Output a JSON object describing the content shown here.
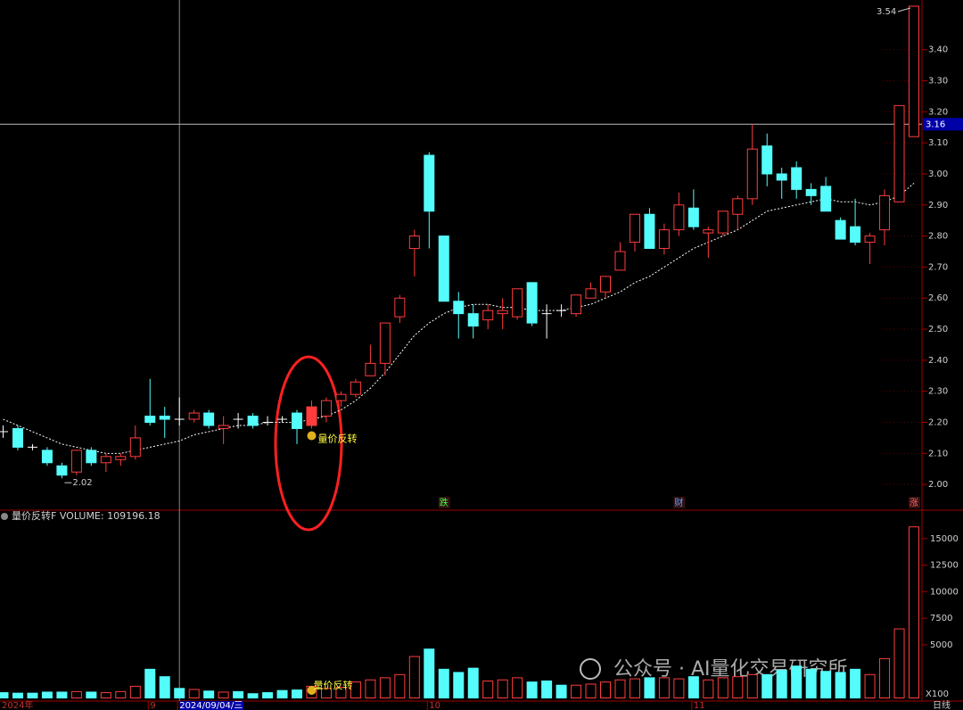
{
  "chart_data": {
    "type": "candlestick",
    "categories": [
      "2024年",
      null,
      null,
      null,
      null,
      null,
      null,
      null,
      null,
      null,
      "9",
      null,
      "2024/09/04/三",
      null,
      null,
      null,
      null,
      null,
      null,
      null,
      null,
      null,
      null,
      null,
      null,
      null,
      null,
      null,
      null,
      "10",
      null,
      null,
      null,
      null,
      null,
      null,
      null,
      null,
      null,
      null,
      null,
      null,
      null,
      null,
      null,
      null,
      null,
      "11",
      null,
      null,
      null,
      null,
      null,
      null,
      null,
      null,
      null,
      null,
      null,
      null,
      null,
      null,
      null
    ],
    "open": [
      2.17,
      2.18,
      2.12,
      2.11,
      2.06,
      2.04,
      2.11,
      2.07,
      2.08,
      2.09,
      2.22,
      2.22,
      2.21,
      2.21,
      2.23,
      2.18,
      2.21,
      2.22,
      2.2,
      2.21,
      2.23,
      2.19,
      2.22,
      2.27,
      2.29,
      2.35,
      2.39,
      2.54,
      2.76,
      3.06,
      2.8,
      2.59,
      2.55,
      2.53,
      2.55,
      2.54,
      2.65,
      2.55,
      2.56,
      2.55,
      2.6,
      2.62,
      2.69,
      2.78,
      2.87,
      2.76,
      2.82,
      2.89,
      2.81,
      2.81,
      2.87,
      2.92,
      3.09,
      3.0,
      3.02,
      2.95,
      2.96,
      2.85,
      2.83,
      2.78,
      2.82,
      2.91,
      3.12
    ],
    "high": [
      2.19,
      2.19,
      2.13,
      2.12,
      2.07,
      2.11,
      2.12,
      2.1,
      2.1,
      2.19,
      2.34,
      2.25,
      2.28,
      2.24,
      2.24,
      2.22,
      2.23,
      2.23,
      2.22,
      2.22,
      2.24,
      2.27,
      2.28,
      2.3,
      2.34,
      2.45,
      2.52,
      2.61,
      2.82,
      3.07,
      2.8,
      2.62,
      2.58,
      2.58,
      2.6,
      2.63,
      2.65,
      2.58,
      2.58,
      2.61,
      2.65,
      2.67,
      2.78,
      2.87,
      2.89,
      2.84,
      2.94,
      2.95,
      2.83,
      2.88,
      2.93,
      3.16,
      3.13,
      3.02,
      3.04,
      2.97,
      2.99,
      2.86,
      2.92,
      2.81,
      2.95,
      3.22,
      3.54
    ],
    "low": [
      2.15,
      2.11,
      2.11,
      2.06,
      2.02,
      2.03,
      2.06,
      2.04,
      2.06,
      2.08,
      2.19,
      2.15,
      2.19,
      2.2,
      2.18,
      2.13,
      2.18,
      2.18,
      2.19,
      2.2,
      2.13,
      2.18,
      2.2,
      2.25,
      2.28,
      2.35,
      2.35,
      2.52,
      2.67,
      2.76,
      2.59,
      2.47,
      2.47,
      2.5,
      2.5,
      2.53,
      2.51,
      2.47,
      2.54,
      2.54,
      2.6,
      2.6,
      2.69,
      2.75,
      2.76,
      2.74,
      2.8,
      2.82,
      2.73,
      2.8,
      2.82,
      2.9,
      2.96,
      2.92,
      2.92,
      2.9,
      2.88,
      2.79,
      2.77,
      2.71,
      2.77,
      2.91,
      3.12
    ],
    "close": [
      2.17,
      2.12,
      2.12,
      2.07,
      2.03,
      2.11,
      2.07,
      2.09,
      2.09,
      2.15,
      2.2,
      2.21,
      2.21,
      2.23,
      2.19,
      2.19,
      2.21,
      2.19,
      2.2,
      2.21,
      2.18,
      2.25,
      2.27,
      2.29,
      2.33,
      2.39,
      2.52,
      2.6,
      2.8,
      2.88,
      2.59,
      2.55,
      2.51,
      2.56,
      2.56,
      2.63,
      2.52,
      2.55,
      2.56,
      2.61,
      2.63,
      2.67,
      2.75,
      2.87,
      2.76,
      2.82,
      2.9,
      2.83,
      2.82,
      2.88,
      2.92,
      3.08,
      3.0,
      2.98,
      2.95,
      2.93,
      2.88,
      2.79,
      2.78,
      2.8,
      2.93,
      3.22,
      3.54
    ],
    "ma": [
      2.21,
      2.19,
      2.17,
      2.15,
      2.13,
      2.12,
      2.11,
      2.1,
      2.1,
      2.11,
      2.12,
      2.13,
      2.14,
      2.16,
      2.17,
      2.18,
      2.19,
      2.19,
      2.2,
      2.2,
      2.2,
      2.21,
      2.22,
      2.24,
      2.27,
      2.31,
      2.36,
      2.42,
      2.48,
      2.52,
      2.55,
      2.57,
      2.58,
      2.58,
      2.57,
      2.57,
      2.56,
      2.56,
      2.56,
      2.57,
      2.58,
      2.6,
      2.62,
      2.65,
      2.67,
      2.7,
      2.73,
      2.76,
      2.78,
      2.8,
      2.82,
      2.85,
      2.88,
      2.89,
      2.9,
      2.91,
      2.92,
      2.91,
      2.91,
      2.9,
      2.91,
      2.93,
      2.97
    ],
    "volume": [
      500,
      450,
      450,
      550,
      550,
      600,
      550,
      500,
      600,
      1100,
      2700,
      2000,
      900,
      800,
      650,
      550,
      600,
      400,
      500,
      700,
      750,
      1100,
      900,
      1000,
      1500,
      1700,
      1900,
      2200,
      3900,
      4600,
      2700,
      2400,
      2800,
      1600,
      1700,
      1900,
      1500,
      1600,
      1200,
      1200,
      1300,
      1500,
      1700,
      1800,
      1900,
      1900,
      1800,
      2000,
      1700,
      1900,
      2000,
      2200,
      2200,
      2600,
      3000,
      2700,
      2500,
      2400,
      2700,
      2200,
      3700,
      6500,
      16100
    ],
    "up_color": "#ff3c3c",
    "down_color": "#54fcfc",
    "flat_color": "#ffffff",
    "ma_color": "#ffffff",
    "ylim": [
      1.92,
      3.56
    ],
    "yticks": [
      {
        "value": 2.0,
        "label": "2.00"
      },
      {
        "value": 2.1,
        "label": "2.10"
      },
      {
        "value": 2.2,
        "label": "2.20"
      },
      {
        "value": 2.3,
        "label": "2.30"
      },
      {
        "value": 2.4,
        "label": "2.40"
      },
      {
        "value": 2.5,
        "label": "2.50"
      },
      {
        "value": 2.6,
        "label": "2.60"
      },
      {
        "value": 2.7,
        "label": "2.70"
      },
      {
        "value": 2.8,
        "label": "2.80"
      },
      {
        "value": 2.9,
        "label": "2.90"
      },
      {
        "value": 3.0,
        "label": "3.00"
      },
      {
        "value": 3.1,
        "label": "3.10"
      },
      {
        "value": 3.2,
        "label": "3.20"
      },
      {
        "value": 3.3,
        "label": "3.30"
      },
      {
        "value": 3.4,
        "label": "3.40"
      }
    ],
    "volume_ylim": [
      0,
      16200
    ],
    "volume_yticks": [
      5000,
      7500,
      10000,
      12500,
      15000
    ],
    "volume_unit": "X100",
    "indicator": "量价反转F  VOLUME: 109196.18",
    "signal": {
      "index": 21,
      "label": "量价反转"
    },
    "events": [
      {
        "index": 30,
        "label": "跌"
      },
      {
        "index": 46,
        "label": "财"
      },
      {
        "index": 62,
        "label": "涨"
      }
    ],
    "crosshair": {
      "index": 12,
      "price": 3.16
    },
    "period": "日线",
    "watermark": "公众号 · AI量化交易研究所"
  }
}
